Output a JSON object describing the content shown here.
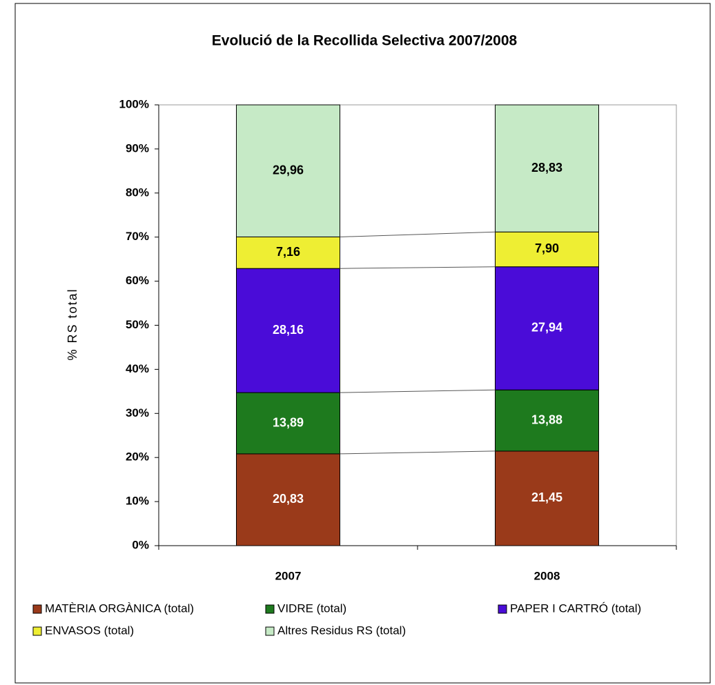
{
  "chart_data": {
    "type": "stacked_bar",
    "title": "Evolució de la Recollida Selectiva 2007/2008",
    "y_label": "% RS total",
    "categories": [
      "2007",
      "2008"
    ],
    "series": [
      {
        "name": "MATÈRIA ORGÀNICA (total)",
        "color": "#9a3a1a",
        "values": [
          20.83,
          21.45
        ],
        "value_labels": [
          "20,83",
          "21,45"
        ]
      },
      {
        "name": "VIDRE (total)",
        "color": "#1e7a1e",
        "values": [
          13.89,
          13.88
        ],
        "value_labels": [
          "13,89",
          "13,88"
        ]
      },
      {
        "name": "PAPER I CARTRÓ (total)",
        "color": "#4a0cd8",
        "values": [
          28.16,
          27.94
        ],
        "value_labels": [
          "28,16",
          "27,94"
        ]
      },
      {
        "name": "ENVASOS (total)",
        "color": "#eeee33",
        "values": [
          7.16,
          7.9
        ],
        "value_labels": [
          "7,16",
          "7,90"
        ]
      },
      {
        "name": "Altres Residus RS (total)",
        "color": "#c6eac6",
        "values": [
          29.96,
          28.83
        ],
        "value_labels": [
          "29,96",
          "28,83"
        ]
      }
    ],
    "ylim": [
      0,
      100
    ],
    "yticks": [
      {
        "value": 0,
        "label": "0%"
      },
      {
        "value": 10,
        "label": "10%"
      },
      {
        "value": 20,
        "label": "20%"
      },
      {
        "value": 30,
        "label": "30%"
      },
      {
        "value": 40,
        "label": "40%"
      },
      {
        "value": 50,
        "label": "50%"
      },
      {
        "value": 60,
        "label": "60%"
      },
      {
        "value": 70,
        "label": "70%"
      },
      {
        "value": 80,
        "label": "80%"
      },
      {
        "value": 90,
        "label": "90%"
      },
      {
        "value": 100,
        "label": "100%"
      }
    ],
    "legend": "bottom"
  }
}
